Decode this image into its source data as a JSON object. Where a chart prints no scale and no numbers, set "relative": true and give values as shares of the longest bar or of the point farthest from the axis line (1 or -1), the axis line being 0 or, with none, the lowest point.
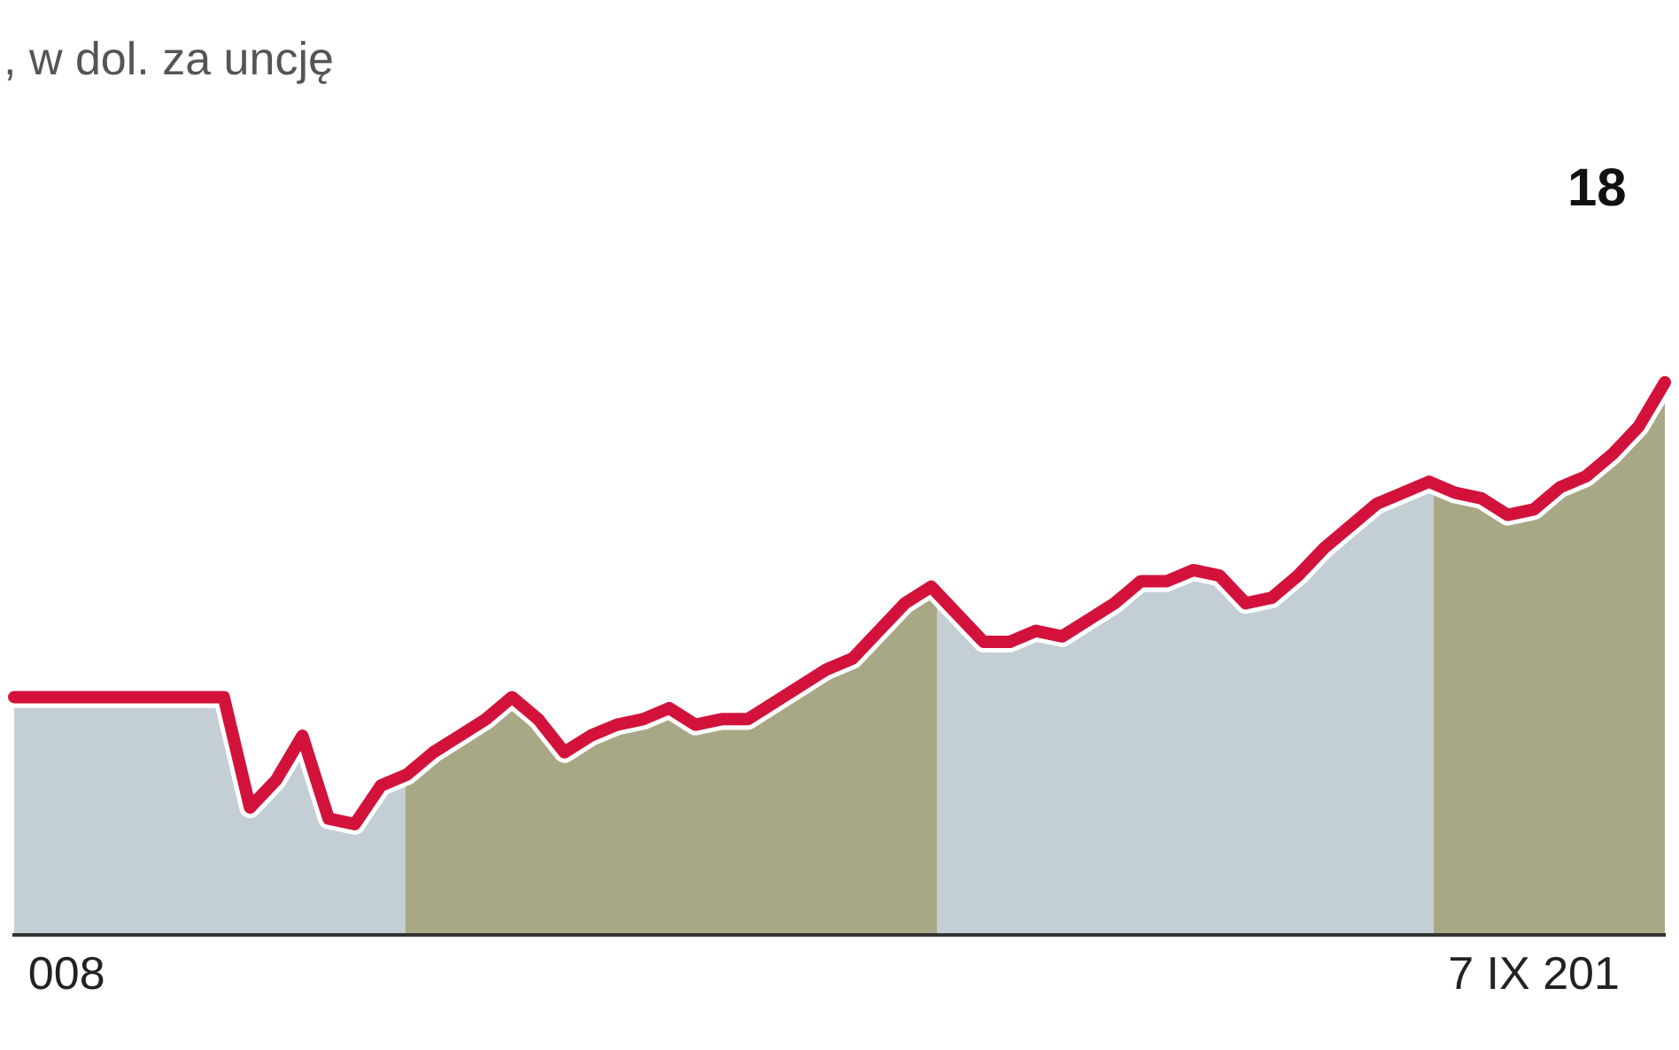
{
  "chart_data": {
    "type": "line",
    "title": ", w dol. za uncję",
    "relative": true,
    "categories": [
      null,
      null,
      "008",
      null,
      null,
      null,
      null,
      null,
      null,
      null,
      null,
      null,
      null,
      null,
      null,
      null,
      null,
      null,
      null,
      null,
      null,
      null,
      null,
      null,
      null,
      null,
      null,
      null,
      null,
      null,
      null,
      null,
      null,
      null,
      null,
      null,
      null,
      null,
      null,
      null,
      null,
      null,
      null,
      null,
      null,
      null,
      null,
      null,
      null,
      null,
      null,
      null,
      null,
      null,
      null,
      null,
      null,
      null,
      "7 IX 201",
      null,
      null,
      null,
      null,
      null
    ],
    "series": [
      {
        "color": "#d3123c",
        "values": [
          0.43,
          0.43,
          0.43,
          0.43,
          0.43,
          0.43,
          0.43,
          0.43,
          0.43,
          0.23,
          0.28,
          0.36,
          0.21,
          0.2,
          0.27,
          0.29,
          0.33,
          0.36,
          0.39,
          0.43,
          0.39,
          0.33,
          0.36,
          0.38,
          0.39,
          0.41,
          0.38,
          0.39,
          0.39,
          0.42,
          0.45,
          0.48,
          0.5,
          0.55,
          0.6,
          0.63,
          0.58,
          0.53,
          0.53,
          0.55,
          0.54,
          0.57,
          0.6,
          0.64,
          0.64,
          0.66,
          0.65,
          0.6,
          0.61,
          0.65,
          0.7,
          0.74,
          0.78,
          0.8,
          0.82,
          0.8,
          0.79,
          0.76,
          0.77,
          0.81,
          0.83,
          0.87,
          0.92,
          1
        ]
      }
    ],
    "annotations": [
      "18"
    ]
  }
}
